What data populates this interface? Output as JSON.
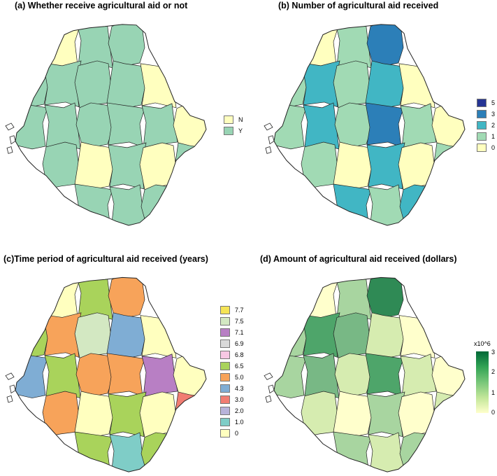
{
  "panels": {
    "a": {
      "title": "(a) Whether receive agricultural aid or not",
      "legend": [
        {
          "label": "N",
          "color": "#ffffbf"
        },
        {
          "label": "Y",
          "color": "#98d4b4"
        }
      ]
    },
    "b": {
      "title": "(b) Number of agricultural aid received",
      "legend": [
        {
          "label": "5",
          "color": "#253494"
        },
        {
          "label": "3",
          "color": "#2c7fb8"
        },
        {
          "label": "2",
          "color": "#41b6c4"
        },
        {
          "label": "1",
          "color": "#a1dab4"
        },
        {
          "label": "0",
          "color": "#ffffbf"
        }
      ]
    },
    "c": {
      "title": "(c)Time period of agricultural aid received (years)",
      "legend": [
        {
          "label": "7.7",
          "color": "#f5e456"
        },
        {
          "label": "7.5",
          "color": "#d3e8c2"
        },
        {
          "label": "7.1",
          "color": "#b87fc4"
        },
        {
          "label": "6.9",
          "color": "#d9d9d9"
        },
        {
          "label": "6.8",
          "color": "#f7c8e4"
        },
        {
          "label": "6.5",
          "color": "#a9d35b"
        },
        {
          "label": "5.0",
          "color": "#f7a35a"
        },
        {
          "label": "4.3",
          "color": "#7fadd4"
        },
        {
          "label": "3.0",
          "color": "#f17d72"
        },
        {
          "label": "2.0",
          "color": "#b8b3da"
        },
        {
          "label": "1.0",
          "color": "#7fcdc7"
        },
        {
          "label": "0",
          "color": "#ffffbf"
        }
      ]
    },
    "d": {
      "title": "(d) Amount of agricultural aid received (dollars)",
      "colorbar": {
        "title": "x10^6",
        "ticks": [
          "3",
          "2",
          "1",
          "0"
        ],
        "colors": [
          "#ffffcc",
          "#c2e699",
          "#78c679",
          "#31a354",
          "#006837"
        ]
      }
    }
  },
  "maps": {
    "a": {
      "base": "#ffffbf",
      "highlight": [
        [
          "#98d4b4",
          [
            3,
            4,
            5,
            7,
            8,
            9,
            10,
            13,
            14,
            15,
            16,
            17,
            19,
            20,
            22,
            24,
            25,
            26,
            27,
            28,
            29,
            30
          ]
        ]
      ]
    },
    "b": {
      "base": "#ffffbf",
      "highlight": [
        [
          "#a1dab4",
          [
            3,
            7,
            9,
            13,
            15,
            17,
            20,
            24,
            26,
            28,
            30
          ]
        ],
        [
          "#41b6c4",
          [
            8,
            10,
            14,
            19,
            22,
            27,
            29
          ]
        ],
        [
          "#2c7fb8",
          [
            4,
            16,
            25
          ]
        ],
        [
          "#253494",
          [
            5
          ]
        ]
      ]
    },
    "c": {
      "base": "#ffffbf",
      "highlight": [
        [
          "#a9d35b",
          [
            3,
            7,
            14,
            19,
            22,
            27,
            29
          ]
        ],
        [
          "#f7a35a",
          [
            4,
            8,
            15,
            16,
            20
          ]
        ],
        [
          "#d3e8c2",
          [
            5,
            9
          ]
        ],
        [
          "#7fadd4",
          [
            10,
            13
          ]
        ],
        [
          "#b87fc4",
          [
            17
          ]
        ],
        [
          "#f17d72",
          [
            24
          ]
        ],
        [
          "#f5e456",
          [
            25
          ]
        ],
        [
          "#b8b3da",
          [
            26
          ]
        ],
        [
          "#7fcdc7",
          [
            28
          ]
        ],
        [
          "#d9d9d9",
          [
            30
          ]
        ]
      ]
    },
    "d": {
      "base": "#ffffcc",
      "highlight": [
        [
          "#2f8a55",
          [
            4,
            5
          ]
        ],
        [
          "#4ea56a",
          [
            8,
            16,
            25
          ]
        ],
        [
          "#78b885",
          [
            9,
            14,
            19
          ]
        ],
        [
          "#a8d5a0",
          [
            3,
            7,
            13,
            22,
            27,
            29
          ]
        ],
        [
          "#d6ecb0",
          [
            10,
            15,
            17,
            20,
            24,
            26,
            28,
            30
          ]
        ]
      ]
    }
  }
}
